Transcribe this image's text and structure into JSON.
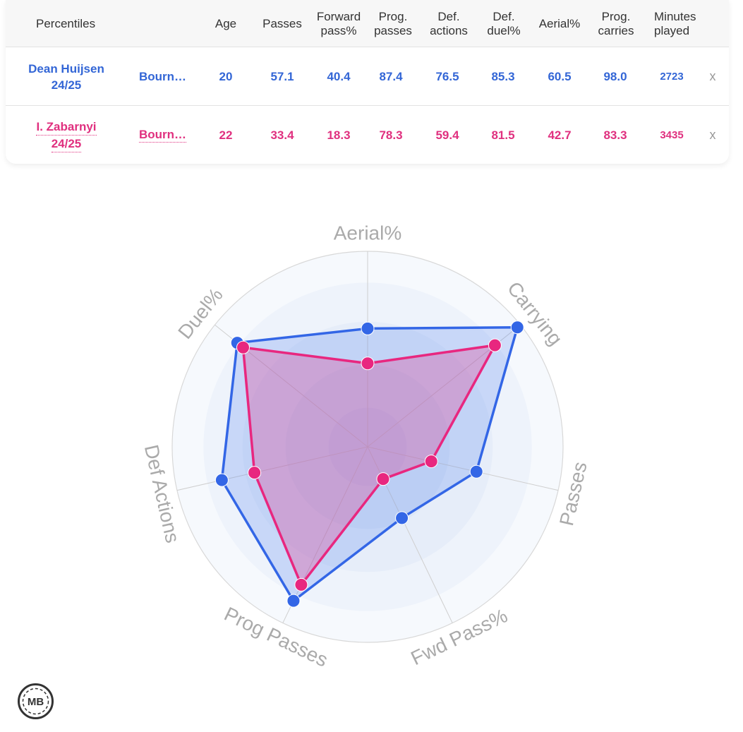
{
  "table": {
    "headers": [
      {
        "key": "label",
        "line1": "Percentiles",
        "line2": ""
      },
      {
        "key": "age",
        "line1": "Age",
        "line2": ""
      },
      {
        "key": "passes",
        "line1": "Passes",
        "line2": ""
      },
      {
        "key": "fwd",
        "line1": "Forward",
        "line2": "pass%"
      },
      {
        "key": "prog_passes",
        "line1": "Prog.",
        "line2": "passes"
      },
      {
        "key": "def_actions",
        "line1": "Def.",
        "line2": "actions"
      },
      {
        "key": "def_duel",
        "line1": "Def.",
        "line2": "duel%"
      },
      {
        "key": "aerial",
        "line1": "Aerial%",
        "line2": ""
      },
      {
        "key": "prog_carries",
        "line1": "Prog.",
        "line2": "carries"
      },
      {
        "key": "minutes",
        "line1": "Minutes",
        "line2": "played"
      }
    ],
    "players": [
      {
        "name": "Dean Huijsen",
        "season": "24/25",
        "team": "Bourn…",
        "age": "20",
        "passes": "57.1",
        "fwd": "40.4",
        "prog_passes": "87.4",
        "def_actions": "76.5",
        "def_duel": "85.3",
        "aerial": "60.5",
        "prog_carries": "98.0",
        "minutes": "2723",
        "remove": "x",
        "color": "#3366d6"
      },
      {
        "name": "I. Zabarnyi",
        "season": "24/25",
        "team": "Bourn…",
        "age": "22",
        "passes": "33.4",
        "fwd": "18.3",
        "prog_passes": "78.3",
        "def_actions": "59.4",
        "def_duel": "81.5",
        "aerial": "42.7",
        "prog_carries": "83.3",
        "minutes": "3435",
        "remove": "x",
        "color": "#e0307f"
      }
    ]
  },
  "chart_data": {
    "type": "radar",
    "axes": [
      "Aerial%",
      "Carrying",
      "Passes",
      "Fwd Pass%",
      "Prog Passes",
      "Def Actions",
      "Duel%"
    ],
    "range": [
      0,
      100
    ],
    "series": [
      {
        "name": "Dean Huijsen",
        "values": [
          60.5,
          98.0,
          57.1,
          40.4,
          87.4,
          76.5,
          85.3
        ],
        "color": "#3366e6"
      },
      {
        "name": "I. Zabarnyi",
        "values": [
          42.7,
          83.3,
          33.4,
          18.3,
          78.3,
          59.4,
          81.5
        ],
        "color": "#e8277f"
      }
    ]
  },
  "logo_text": "MB"
}
